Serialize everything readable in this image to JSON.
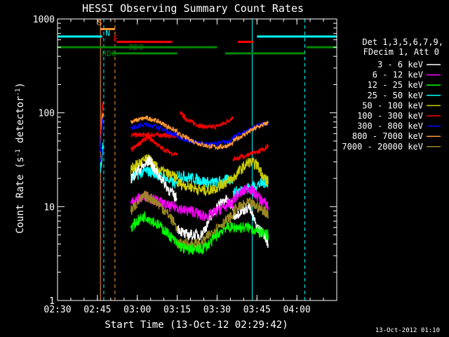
{
  "chart_data": {
    "type": "line",
    "title": "HESSI Observing Summary Count Rates",
    "xlabel": "Start Time (13-Oct-12 02:29:42)",
    "ylabel": "Count Rate (s^-1 detector^-1)",
    "ylabel_parts": {
      "main": "Count Rate (s",
      "exp1": "-1",
      "mid": " detector",
      "exp2": "-1",
      "end": ")"
    },
    "yscale": "log",
    "ylim": [
      1,
      1000
    ],
    "xlim": [
      2.5,
      4.25
    ],
    "x_unit": "hour-of-day (decimal)",
    "x_ticks": [
      {
        "value": 2.5,
        "label": "02:30"
      },
      {
        "value": 2.75,
        "label": "02:45"
      },
      {
        "value": 3.0,
        "label": "03:00"
      },
      {
        "value": 3.25,
        "label": "03:15"
      },
      {
        "value": 3.5,
        "label": "03:30"
      },
      {
        "value": 3.75,
        "label": "03:45"
      },
      {
        "value": 4.0,
        "label": "04:00"
      }
    ],
    "y_ticks": [
      {
        "value": 1,
        "label": "1"
      },
      {
        "value": 10,
        "label": "10"
      },
      {
        "value": 100,
        "label": "100"
      },
      {
        "value": 1000,
        "label": "1000"
      }
    ],
    "grid": false,
    "legend_placement": "right",
    "legend_header": [
      "Det 1,3,5,6,7,9,",
      "FDecim 1, Att 0"
    ],
    "footer_timestamp": "13-Oct-2012 01:10",
    "series": [
      {
        "name": "3 - 6 keV",
        "color": "#ffffff",
        "values": []
      },
      {
        "name": "6 - 12 keV",
        "color": "#ff00ff",
        "values": []
      },
      {
        "name": "12 - 25 keV",
        "color": "#00ff00",
        "values": []
      },
      {
        "name": "25 - 50 keV",
        "color": "#00ffff",
        "values": []
      },
      {
        "name": "50 - 100 keV",
        "color": "#cccc00",
        "values": []
      },
      {
        "name": "100 - 300 keV",
        "color": "#ff0000",
        "values": []
      },
      {
        "name": "300 - 800 keV",
        "color": "#0000ff",
        "values": []
      },
      {
        "name": "800 - 7000 keV",
        "color": "#ff9933",
        "values": []
      },
      {
        "name": "7000 - 20000 keV",
        "color": "#998822",
        "values": []
      }
    ],
    "segments": [
      {
        "series": 5,
        "x": [
          2.77,
          2.772,
          2.775,
          2.78,
          2.785
        ],
        "y": [
          60,
          70,
          90,
          110,
          125
        ]
      },
      {
        "series": 7,
        "x": [
          2.77,
          2.772,
          2.775,
          2.78,
          2.785
        ],
        "y": [
          45,
          55,
          70,
          85,
          100
        ]
      },
      {
        "series": 6,
        "x": [
          2.77,
          2.772,
          2.775,
          2.78,
          2.785
        ],
        "y": [
          40,
          48,
          60,
          75,
          85
        ]
      },
      {
        "series": 3,
        "x": [
          2.77,
          2.775,
          2.78,
          2.785
        ],
        "y": [
          25,
          30,
          38,
          45
        ]
      },
      {
        "series": 5,
        "x": [
          3.27,
          3.3,
          3.35,
          3.4,
          3.45,
          3.5,
          3.55,
          3.6
        ],
        "y": [
          100,
          88,
          78,
          72,
          70,
          72,
          78,
          90
        ]
      },
      {
        "series": 5,
        "x": [
          2.96,
          3.0,
          3.05,
          3.1,
          3.15,
          3.2,
          3.25
        ],
        "y": [
          58,
          58,
          58,
          58,
          58,
          57,
          56
        ]
      },
      {
        "series": 5,
        "x": [
          3.6,
          3.65,
          3.7,
          3.75,
          3.8,
          3.82
        ],
        "y": [
          32,
          34,
          36,
          38,
          42,
          45
        ]
      },
      {
        "series": 6,
        "x": [
          2.96,
          3.0,
          3.05,
          3.1,
          3.15,
          3.2,
          3.25
        ],
        "y": [
          70,
          72,
          75,
          73,
          68,
          62,
          58
        ]
      },
      {
        "series": 6,
        "x": [
          3.25,
          3.3,
          3.35,
          3.4,
          3.45,
          3.5,
          3.55,
          3.6
        ],
        "y": [
          55,
          52,
          49,
          47,
          46,
          47,
          49,
          52
        ]
      },
      {
        "series": 6,
        "x": [
          3.6,
          3.65,
          3.7,
          3.75,
          3.8,
          3.82
        ],
        "y": [
          55,
          60,
          66,
          72,
          76,
          78
        ]
      },
      {
        "series": 7,
        "x": [
          2.96,
          3.0,
          3.05,
          3.1,
          3.15,
          3.2,
          3.25
        ],
        "y": [
          80,
          84,
          88,
          85,
          78,
          70,
          63
        ]
      },
      {
        "series": 7,
        "x": [
          3.25,
          3.3,
          3.35,
          3.4,
          3.45,
          3.5,
          3.55,
          3.6
        ],
        "y": [
          60,
          55,
          50,
          46,
          44,
          43,
          44,
          47
        ]
      },
      {
        "series": 7,
        "x": [
          3.6,
          3.65,
          3.7,
          3.75,
          3.8,
          3.82
        ],
        "y": [
          50,
          56,
          63,
          70,
          76,
          78
        ]
      },
      {
        "series": 5,
        "x": [
          2.96,
          3.0,
          3.03,
          3.07,
          3.1,
          3.15,
          3.2,
          3.25
        ],
        "y": [
          40,
          45,
          50,
          55,
          50,
          42,
          38,
          36
        ]
      },
      {
        "series": 3,
        "x": [
          2.96,
          3.0,
          3.05,
          3.1,
          3.15,
          3.2,
          3.25
        ],
        "y": [
          20,
          22,
          24,
          23,
          21,
          19,
          17
        ]
      },
      {
        "series": 3,
        "x": [
          3.25,
          3.3,
          3.35,
          3.4,
          3.45,
          3.5,
          3.55,
          3.6
        ],
        "y": [
          22,
          21,
          20,
          19,
          18,
          18,
          19,
          20
        ]
      },
      {
        "series": 3,
        "x": [
          3.6,
          3.65,
          3.7,
          3.75,
          3.8,
          3.82
        ],
        "y": [
          14,
          15,
          16,
          17,
          18,
          19
        ]
      },
      {
        "series": 4,
        "x": [
          2.96,
          3.0,
          3.03,
          3.07,
          3.1,
          3.15,
          3.2,
          3.25
        ],
        "y": [
          25,
          28,
          30,
          32,
          28,
          24,
          22,
          20
        ]
      },
      {
        "series": 4,
        "x": [
          3.25,
          3.3,
          3.35,
          3.4,
          3.45,
          3.5,
          3.55,
          3.6
        ],
        "y": [
          18,
          17,
          16,
          15,
          15,
          16,
          18,
          20
        ]
      },
      {
        "series": 4,
        "x": [
          3.6,
          3.65,
          3.7,
          3.75,
          3.8,
          3.82
        ],
        "y": [
          20,
          25,
          30,
          28,
          20,
          18
        ]
      },
      {
        "series": 0,
        "x": [
          2.96,
          3.0,
          3.05,
          3.08,
          3.1,
          3.15,
          3.2,
          3.25
        ],
        "y": [
          20,
          24,
          28,
          32,
          26,
          20,
          15,
          12
        ]
      },
      {
        "series": 0,
        "x": [
          3.25,
          3.3,
          3.35,
          3.4,
          3.45,
          3.5,
          3.55,
          3.6
        ],
        "y": [
          6,
          5,
          5,
          5,
          7,
          10,
          12,
          10
        ]
      },
      {
        "series": 0,
        "x": [
          3.6,
          3.65,
          3.7,
          3.75,
          3.8,
          3.82
        ],
        "y": [
          8,
          9,
          10,
          6,
          5,
          4
        ]
      },
      {
        "series": 1,
        "x": [
          2.96,
          3.0,
          3.05,
          3.1,
          3.15,
          3.2,
          3.25
        ],
        "y": [
          11,
          12,
          13,
          12,
          11,
          10,
          10
        ]
      },
      {
        "series": 1,
        "x": [
          3.25,
          3.3,
          3.35,
          3.4,
          3.45,
          3.5,
          3.55,
          3.6
        ],
        "y": [
          10,
          9,
          9,
          8,
          8,
          9,
          10,
          11
        ]
      },
      {
        "series": 1,
        "x": [
          3.6,
          3.65,
          3.7,
          3.75,
          3.8,
          3.82
        ],
        "y": [
          12,
          14,
          16,
          13,
          11,
          10
        ]
      },
      {
        "series": 8,
        "x": [
          2.96,
          3.0,
          3.05,
          3.1,
          3.15,
          3.2,
          3.25
        ],
        "y": [
          9,
          11,
          13,
          12,
          10,
          8,
          6
        ]
      },
      {
        "series": 8,
        "x": [
          3.25,
          3.3,
          3.35,
          3.4,
          3.45,
          3.5,
          3.55,
          3.6
        ],
        "y": [
          4,
          4,
          4,
          4,
          5,
          6,
          7,
          8
        ]
      },
      {
        "series": 8,
        "x": [
          3.6,
          3.65,
          3.7,
          3.75,
          3.8,
          3.82
        ],
        "y": [
          9,
          10,
          11,
          10,
          9,
          8
        ]
      },
      {
        "series": 2,
        "x": [
          2.96,
          3.0,
          3.05,
          3.1,
          3.15,
          3.2,
          3.25
        ],
        "y": [
          6,
          7,
          8,
          7,
          6,
          5,
          4
        ]
      },
      {
        "series": 2,
        "x": [
          3.25,
          3.3,
          3.35,
          3.4,
          3.45,
          3.5,
          3.55,
          3.6
        ],
        "y": [
          4,
          3.5,
          3.5,
          3.5,
          4,
          5,
          6,
          6
        ]
      },
      {
        "series": 2,
        "x": [
          3.6,
          3.65,
          3.7,
          3.75,
          3.8,
          3.82
        ],
        "y": [
          6,
          6,
          6,
          5.5,
          5,
          5
        ]
      },
      {
        "series": 6,
        "x": [
          2.77,
          2.775,
          2.78
        ],
        "y": [
          30,
          35,
          40
        ]
      }
    ],
    "state_bars": [
      {
        "label": "S",
        "color": "#ff9933",
        "x": [
          2.77,
          2.86
        ],
        "y": 780,
        "label_x": 2.75,
        "label_y": 860
      },
      {
        "label": "N",
        "color": "#00ffff",
        "x": [
          2.5,
          2.78
        ],
        "y": 650,
        "label_x": 2.8,
        "label_y": 660
      },
      {
        "label": "N",
        "color": "#00ffff",
        "x": [
          3.75,
          4.25
        ],
        "y": 650
      },
      {
        "label": "F",
        "color": "#ff0000",
        "x": [
          2.87,
          2.91
        ],
        "y": 570,
        "label_x": 2.85,
        "label_y": 580
      },
      {
        "label": "",
        "color": "#ff0000",
        "x": [
          2.91,
          3.22
        ],
        "y": 570
      },
      {
        "label": "",
        "color": "#ff0000",
        "x": [
          3.63,
          3.73
        ],
        "y": 570
      },
      {
        "label": "RD0",
        "color": "#008800",
        "x": [
          2.5,
          3.5
        ],
        "y": 500,
        "label_x": 2.95,
        "label_y": 470
      },
      {
        "label": "",
        "color": "#008800",
        "x": [
          4.06,
          4.25
        ],
        "y": 500
      },
      {
        "label": "RD6",
        "color": "#008800",
        "x": [
          2.85,
          3.25
        ],
        "y": 430,
        "label_x": 2.78,
        "label_y": 400
      },
      {
        "label": "",
        "color": "#008800",
        "x": [
          3.55,
          4.05
        ],
        "y": 430
      }
    ],
    "vlines": [
      {
        "x": 2.5,
        "color": "#00ffff",
        "dash": false
      },
      {
        "x": 2.769,
        "color": "#ff9933",
        "dash": false
      },
      {
        "x": 2.79,
        "color": "#00ffff",
        "dash": true
      },
      {
        "x": 2.86,
        "color": "#ff9933",
        "dash": true
      },
      {
        "x": 3.72,
        "color": "#00ffff",
        "dash": false
      },
      {
        "x": 4.05,
        "color": "#00ffff",
        "dash": true
      }
    ]
  }
}
